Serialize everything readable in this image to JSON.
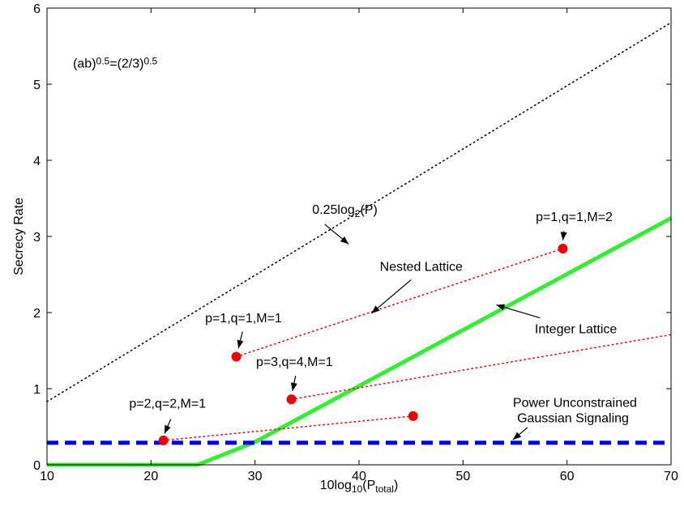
{
  "chart_data": {
    "type": "line",
    "xlabel": {
      "base": "10log",
      "sub": "10",
      "mid": "(P",
      "sub2": "total",
      "end": ")"
    },
    "ylabel": "Secrecy Rate",
    "xlim": [
      10,
      70
    ],
    "ylim": [
      0,
      6
    ],
    "xticks": [
      "10",
      "20",
      "30",
      "40",
      "50",
      "60",
      "70"
    ],
    "yticks": [
      "0",
      "1",
      "2",
      "3",
      "4",
      "5",
      "6"
    ],
    "grid": false,
    "series": [
      {
        "style": "black-dotted",
        "color": "#000000",
        "x": [
          10,
          70
        ],
        "y": [
          0.83,
          5.81
        ]
      },
      {
        "style": "green-solid",
        "color": "#33ee33",
        "x": [
          10,
          24.5,
          30,
          70
        ],
        "y": [
          0.0,
          0.0,
          0.3,
          3.24
        ]
      },
      {
        "style": "blue-dashed",
        "color": "#0000ee",
        "x": [
          10,
          70
        ],
        "y": [
          0.29,
          0.29
        ]
      },
      {
        "style": "red-dotted",
        "color": "#ee0000",
        "x": [
          28.2,
          59.6
        ],
        "y": [
          1.42,
          2.84
        ]
      },
      {
        "style": "red-dotted",
        "color": "#ee0000",
        "x": [
          33.5,
          70
        ],
        "y": [
          0.86,
          1.71
        ]
      },
      {
        "style": "red-dotted",
        "color": "#ee0000",
        "x": [
          21.2,
          45.2
        ],
        "y": [
          0.32,
          0.64
        ]
      }
    ],
    "points": [
      {
        "x": 59.6,
        "y": 2.84,
        "color": "#ee0000"
      },
      {
        "x": 28.2,
        "y": 1.42,
        "color": "#ee0000"
      },
      {
        "x": 33.5,
        "y": 0.86,
        "color": "#ee0000"
      },
      {
        "x": 21.2,
        "y": 0.32,
        "color": "#ee0000"
      },
      {
        "x": 45.2,
        "y": 0.64,
        "color": "#ee0000"
      }
    ],
    "annotations": [
      {
        "id": "ann-ab",
        "parts": [
          [
            "(ab)",
            ""
          ],
          [
            "0.5",
            "sup"
          ],
          [
            "=(2/3)",
            ""
          ],
          [
            "0.5",
            "sup"
          ]
        ],
        "tx": 12.5,
        "ty": 5.22
      },
      {
        "id": "ann-log",
        "parts": [
          [
            "0.25log",
            ""
          ],
          [
            "2",
            "sub"
          ],
          [
            "(P)",
            ""
          ]
        ],
        "tx": 35.5,
        "ty": 3.3,
        "arrow": [
          [
            36.7,
            3.16
          ],
          [
            39.0,
            2.9
          ]
        ]
      },
      {
        "id": "ann-p11m2",
        "parts": [
          [
            "p=1,q=1,M=2",
            ""
          ]
        ],
        "tx": 57.0,
        "ty": 3.2,
        "arrow": [
          [
            59.7,
            3.07
          ],
          [
            59.6,
            2.95
          ]
        ]
      },
      {
        "id": "ann-nested",
        "parts": [
          [
            "Nested Lattice",
            ""
          ]
        ],
        "tx": 42.0,
        "ty": 2.55,
        "arrow": [
          [
            45.0,
            2.43
          ],
          [
            41.2,
            1.99
          ]
        ]
      },
      {
        "id": "ann-p11m1",
        "parts": [
          [
            "p=1,q=1,M=1",
            ""
          ]
        ],
        "tx": 25.2,
        "ty": 1.87,
        "arrow": [
          [
            28.8,
            1.75
          ],
          [
            28.4,
            1.53
          ]
        ]
      },
      {
        "id": "ann-integer",
        "parts": [
          [
            "Integer Lattice",
            ""
          ]
        ],
        "tx": 56.9,
        "ty": 1.73,
        "arrow": [
          [
            57.4,
            1.93
          ],
          [
            53.2,
            2.1
          ]
        ]
      },
      {
        "id": "ann-p34m1",
        "parts": [
          [
            "p=3,q=4,M=1",
            ""
          ]
        ],
        "tx": 30.1,
        "ty": 1.3,
        "arrow": [
          [
            33.9,
            1.17
          ],
          [
            33.6,
            0.97
          ]
        ]
      },
      {
        "id": "ann-p22m1",
        "parts": [
          [
            "p=2,q=2,M=1",
            ""
          ]
        ],
        "tx": 17.9,
        "ty": 0.75,
        "arrow": [
          [
            21.9,
            0.6
          ],
          [
            21.3,
            0.41
          ]
        ]
      },
      {
        "id": "ann-gauss1",
        "parts": [
          [
            "Power Unconstrained",
            ""
          ]
        ],
        "tx": 54.8,
        "ty": 0.76
      },
      {
        "id": "ann-gauss2",
        "parts": [
          [
            "Gaussian Signaling",
            ""
          ]
        ],
        "tx": 55.2,
        "ty": 0.56,
        "arrow": [
          [
            56.2,
            0.49
          ],
          [
            54.8,
            0.33
          ]
        ]
      }
    ]
  }
}
